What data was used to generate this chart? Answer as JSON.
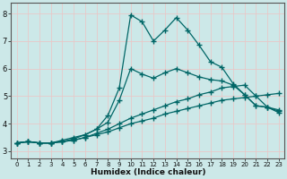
{
  "xlabel": "Humidex (Indice chaleur)",
  "xlim": [
    -0.5,
    23.5
  ],
  "ylim": [
    2.75,
    8.4
  ],
  "xticks": [
    0,
    1,
    2,
    3,
    4,
    5,
    6,
    7,
    8,
    9,
    10,
    11,
    12,
    13,
    14,
    15,
    16,
    17,
    18,
    19,
    20,
    21,
    22,
    23
  ],
  "yticks": [
    3,
    4,
    5,
    6,
    7,
    8
  ],
  "bg_color": "#cce8e8",
  "line_color": "#006666",
  "grid_color": "#e8c8c8",
  "line1_x": [
    0,
    1,
    2,
    3,
    4,
    5,
    6,
    7,
    8,
    9,
    10,
    11,
    12,
    13,
    14,
    15,
    16,
    17,
    18,
    19,
    20,
    21,
    22,
    23
  ],
  "line1_y": [
    3.3,
    3.35,
    3.3,
    3.3,
    3.35,
    3.4,
    3.5,
    3.6,
    3.7,
    3.85,
    4.0,
    4.1,
    4.2,
    4.35,
    4.45,
    4.55,
    4.65,
    4.75,
    4.85,
    4.9,
    4.95,
    5.0,
    5.05,
    5.1
  ],
  "line2_x": [
    0,
    1,
    2,
    3,
    4,
    5,
    6,
    7,
    8,
    9,
    10,
    11,
    12,
    13,
    14,
    15,
    16,
    17,
    18,
    19,
    20,
    21,
    22,
    23
  ],
  "line2_y": [
    3.3,
    3.35,
    3.3,
    3.3,
    3.35,
    3.4,
    3.5,
    3.65,
    3.8,
    4.0,
    4.2,
    4.35,
    4.5,
    4.65,
    4.8,
    4.9,
    5.05,
    5.15,
    5.3,
    5.35,
    5.4,
    5.0,
    4.6,
    4.5
  ],
  "line3_x": [
    0,
    1,
    2,
    3,
    4,
    5,
    6,
    7,
    8,
    9,
    10,
    11,
    12,
    13,
    14,
    15,
    16,
    17,
    18,
    19,
    20,
    21,
    22,
    23
  ],
  "line3_y": [
    3.3,
    3.35,
    3.3,
    3.3,
    3.4,
    3.5,
    3.6,
    3.8,
    4.3,
    5.3,
    7.95,
    7.7,
    7.0,
    7.4,
    7.85,
    7.4,
    6.85,
    6.25,
    6.05,
    5.45,
    5.05,
    4.65,
    4.6,
    4.45
  ],
  "line4_x": [
    0,
    1,
    2,
    3,
    4,
    5,
    6,
    7,
    8,
    9,
    10,
    11,
    12,
    13,
    14,
    15,
    16,
    17,
    18,
    19,
    20,
    21,
    22,
    23
  ],
  "line4_y": [
    3.3,
    3.35,
    3.3,
    3.3,
    3.35,
    3.45,
    3.6,
    3.8,
    4.05,
    4.85,
    6.0,
    5.8,
    5.65,
    5.85,
    6.0,
    5.85,
    5.7,
    5.6,
    5.55,
    5.4,
    5.05,
    4.65,
    4.6,
    4.4
  ],
  "marker": "+",
  "markersize": 4,
  "linewidth": 0.9
}
